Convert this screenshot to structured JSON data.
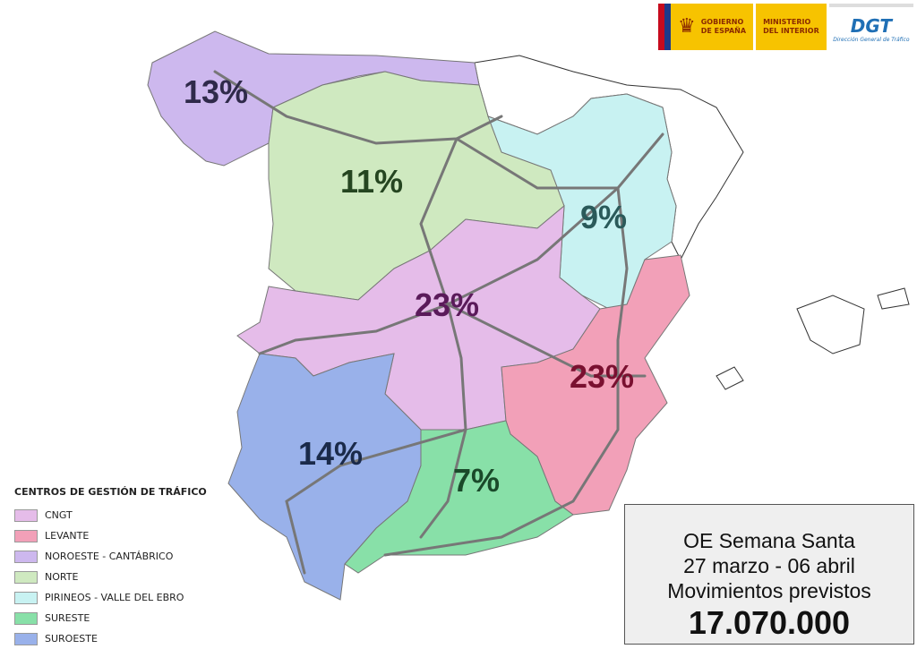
{
  "header": {
    "gov_line1": "GOBIERNO",
    "gov_line2": "DE ESPAÑA",
    "min_line1": "MINISTERIO",
    "min_line2": "DEL INTERIOR",
    "dgt": "DGT",
    "dgt_sub": "Dirección General de Tráfico"
  },
  "regions": [
    {
      "name": "CNGT",
      "pct": "23%",
      "color": "#e5bce9",
      "label_color": "#5a1a5a"
    },
    {
      "name": "LEVANTE",
      "pct": "23%",
      "color": "#f2a0b8",
      "label_color": "#7a1030"
    },
    {
      "name": "NOROESTE - CANTÁBRICO",
      "pct": "13%",
      "color": "#cdb8ee",
      "label_color": "#2f2a4a"
    },
    {
      "name": "NORTE",
      "pct": "11%",
      "color": "#cfe9c0",
      "label_color": "#254520"
    },
    {
      "name": "PIRINEOS - VALLE DEL EBRO",
      "pct": "9%",
      "color": "#c8f2f2",
      "label_color": "#2a5a5a"
    },
    {
      "name": "SURESTE",
      "pct": "7%",
      "color": "#88e0a8",
      "label_color": "#1a4a2a"
    },
    {
      "name": "SUROESTE",
      "pct": "14%",
      "color": "#99b1ea",
      "label_color": "#1a2a4a"
    }
  ],
  "legend": {
    "title": "CENTROS DE GESTIÓN DE TRÁFICO"
  },
  "summary": {
    "line1": "OE Semana Santa",
    "line2": "27 marzo - 06 abril",
    "line3": "Movimientos previstos",
    "total": "17.070.000"
  }
}
